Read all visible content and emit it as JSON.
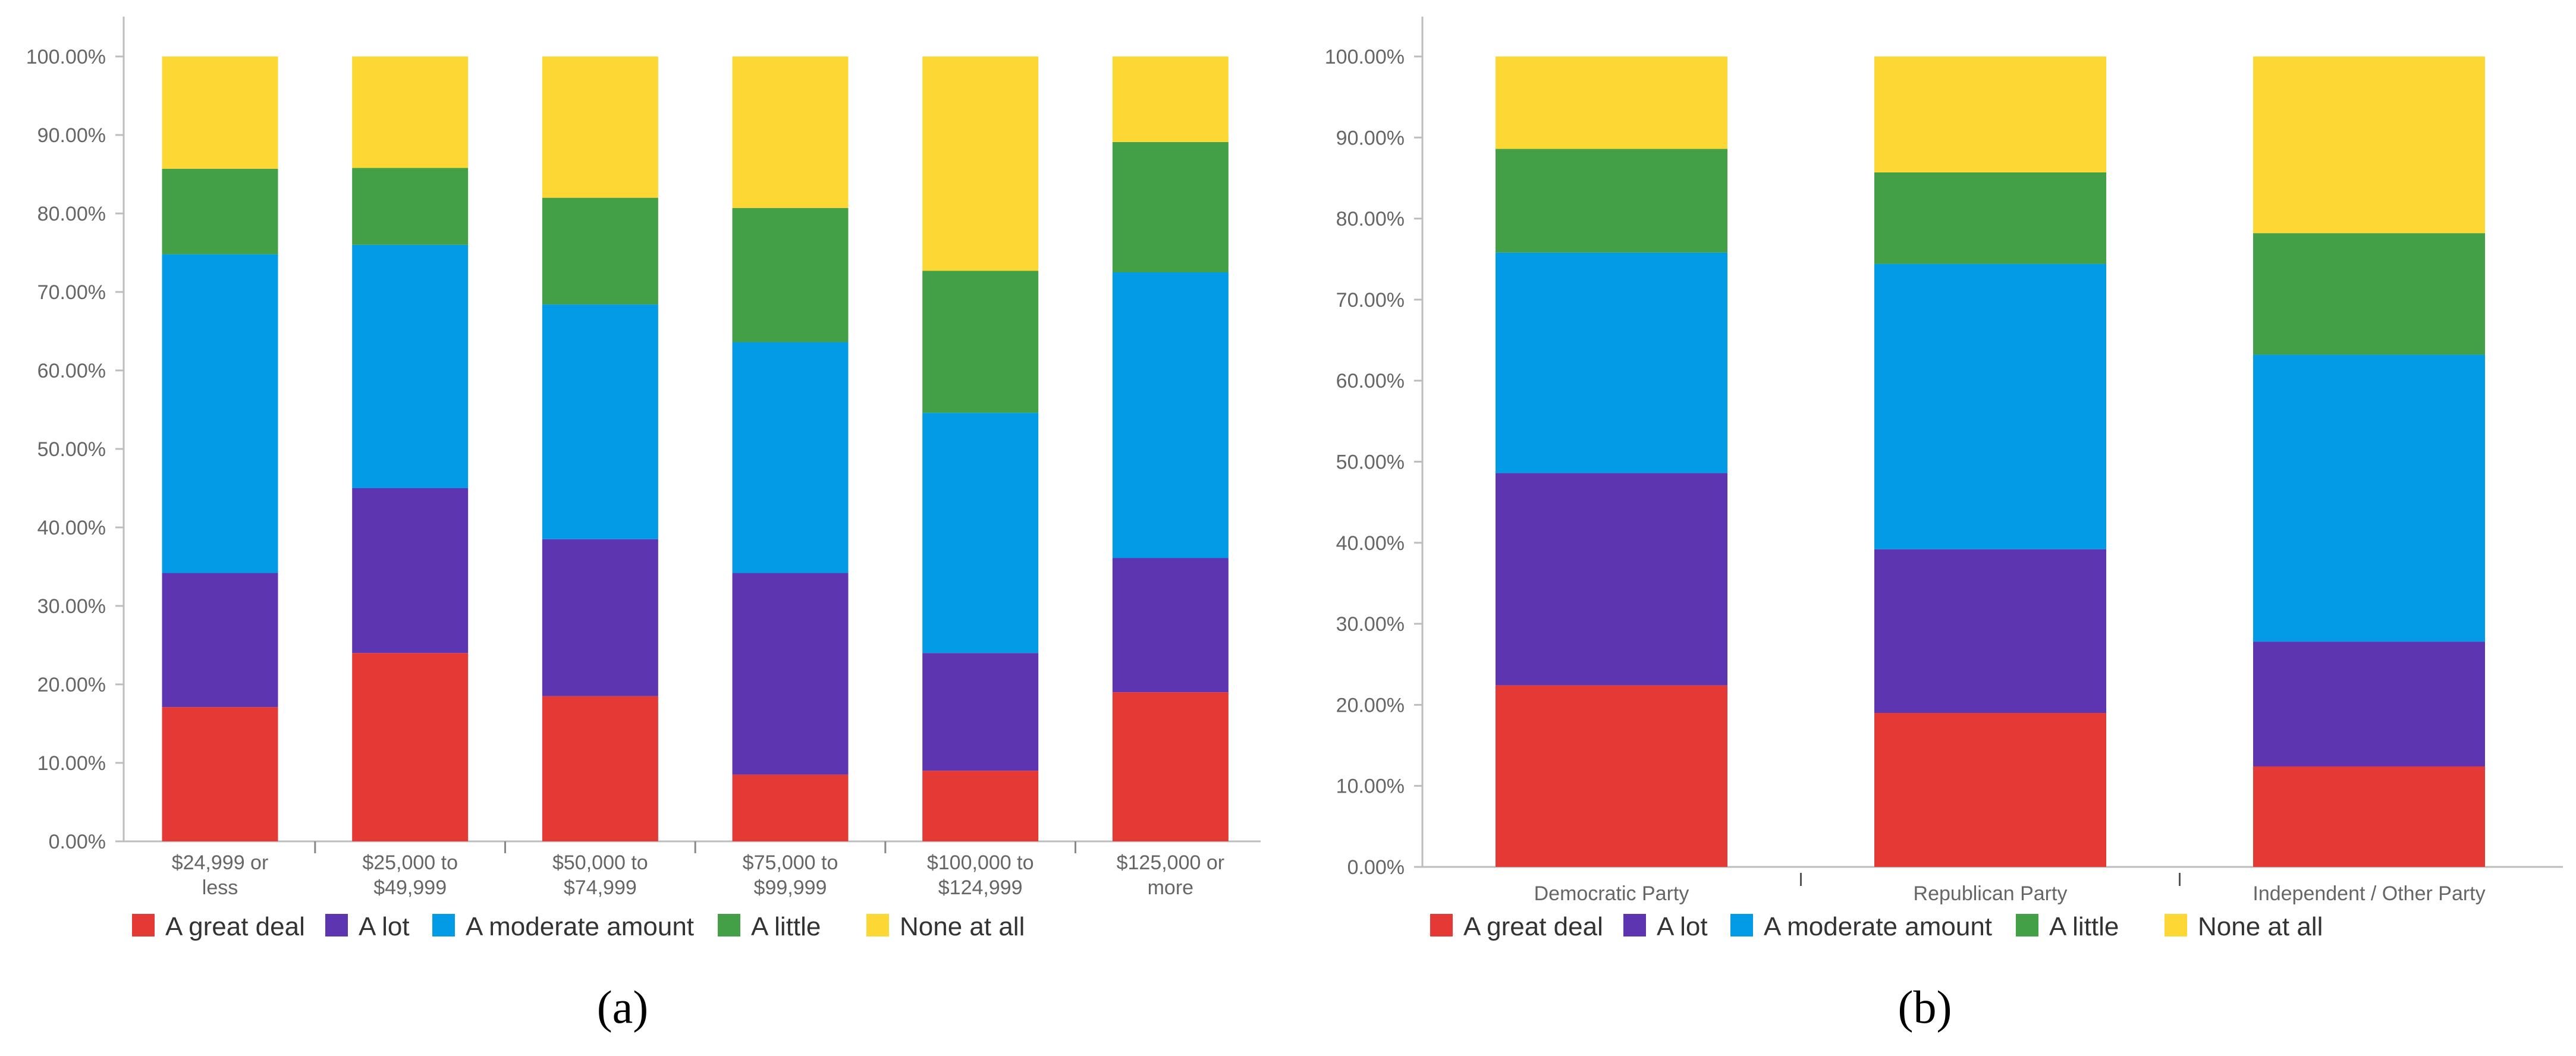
{
  "chart_data": [
    {
      "type": "bar",
      "stacked": true,
      "panel_label": "(a)",
      "title": "",
      "xlabel": "",
      "ylabel": "",
      "ylim": [
        0,
        100
      ],
      "ytick_labels": [
        "0.00%",
        "10.00%",
        "20.00%",
        "30.00%",
        "40.00%",
        "50.00%",
        "60.00%",
        "70.00%",
        "80.00%",
        "90.00%",
        "100.00%"
      ],
      "categories": [
        [
          "$24,999 or",
          "less"
        ],
        [
          "$25,000 to",
          "$49,999"
        ],
        [
          "$50,000 to",
          "$74,999"
        ],
        [
          "$75,000 to",
          "$99,999"
        ],
        [
          "$100,000 to",
          "$124,999"
        ],
        [
          "$125,000 or",
          "more"
        ]
      ],
      "series": [
        {
          "name": "A great deal",
          "color": "#e53935",
          "values": [
            17.1,
            24.0,
            18.5,
            8.5,
            9.0,
            19.0
          ]
        },
        {
          "name": "A lot",
          "color": "#5e35b1",
          "values": [
            17.1,
            21.0,
            20.0,
            25.7,
            15.0,
            17.1
          ]
        },
        {
          "name": "A moderate amount",
          "color": "#039be5",
          "values": [
            40.6,
            31.0,
            29.9,
            29.4,
            30.6,
            36.4
          ]
        },
        {
          "name": "A little",
          "color": "#43a047",
          "values": [
            10.9,
            9.8,
            13.6,
            17.1,
            18.1,
            16.6
          ]
        },
        {
          "name": "None at all",
          "color": "#fdd835",
          "values": [
            14.3,
            14.2,
            18.0,
            19.3,
            27.3,
            10.9
          ]
        }
      ],
      "legend_position": "bottom"
    },
    {
      "type": "bar",
      "stacked": true,
      "panel_label": "(b)",
      "title": "",
      "xlabel": "",
      "ylabel": "",
      "ylim": [
        0,
        100
      ],
      "ytick_labels": [
        "0.00%",
        "10.00%",
        "20.00%",
        "30.00%",
        "40.00%",
        "50.00%",
        "60.00%",
        "70.00%",
        "80.00%",
        "90.00%",
        "100.00%"
      ],
      "categories": [
        [
          "Democratic Party"
        ],
        [
          "Republican Party"
        ],
        [
          "Independent / Other Party"
        ]
      ],
      "series": [
        {
          "name": "A great deal",
          "color": "#e53935",
          "values": [
            22.4,
            19.0,
            12.4
          ]
        },
        {
          "name": "A lot",
          "color": "#5e35b1",
          "values": [
            26.2,
            20.2,
            15.4
          ]
        },
        {
          "name": "A moderate amount",
          "color": "#039be5",
          "values": [
            27.2,
            35.2,
            35.4
          ]
        },
        {
          "name": "A little",
          "color": "#43a047",
          "values": [
            12.8,
            11.3,
            15.0
          ]
        },
        {
          "name": "None at all",
          "color": "#fdd835",
          "values": [
            11.4,
            14.3,
            21.8
          ]
        }
      ],
      "legend_position": "bottom"
    }
  ]
}
